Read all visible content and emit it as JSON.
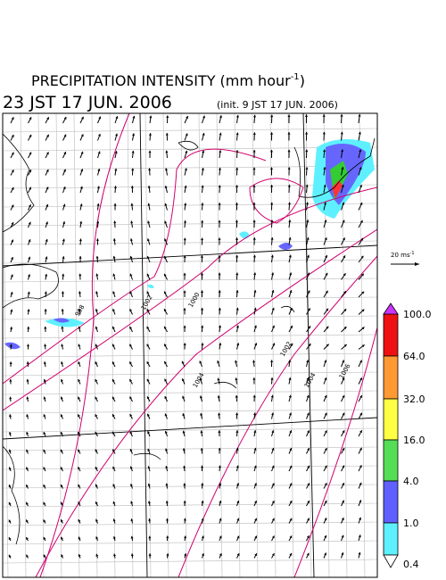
{
  "header": {
    "title": "PRECIPITATION INTENSITY (mm hour",
    "title_sup": "-1",
    "title_end": ")",
    "valid_time": "23 JST 17 JUN. 2006",
    "init_time": "(init. 9 JST 17 JUN. 2006)"
  },
  "scale": {
    "label": "20 ms",
    "sup": "-1"
  },
  "colorbar": {
    "labels": [
      "100.0",
      "64.0",
      "32.0",
      "16.0",
      "4.0",
      "1.0",
      "0.4"
    ]
  },
  "isobars": {
    "labels": [
      "998",
      "1000",
      "1002",
      "1004",
      "1006",
      "1002",
      "1004"
    ]
  }
}
